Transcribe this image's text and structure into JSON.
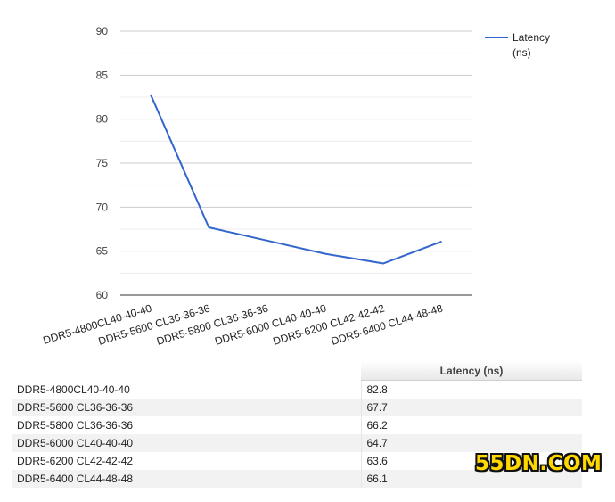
{
  "chart_data": {
    "type": "line",
    "categories": [
      "DDR5-4800CL40-40-40",
      "DDR5-5600 CL36-36-36",
      "DDR5-5800 CL36-36-36",
      "DDR5-6000 CL40-40-40",
      "DDR5-6200 CL42-42-42",
      "DDR5-6400 CL44-48-48"
    ],
    "series": [
      {
        "name": "Latency (ns)",
        "values": [
          82.8,
          67.7,
          66.2,
          64.7,
          63.6,
          66.1
        ],
        "color": "#3366cc"
      }
    ],
    "yticks": [
      60,
      65,
      70,
      75,
      80,
      85,
      90
    ],
    "ylim": [
      60,
      90
    ],
    "grid": true,
    "legend_position": "right",
    "legend_lines": [
      "Latency",
      "(ns)"
    ]
  },
  "table": {
    "header": [
      "",
      "Latency (ns)"
    ],
    "rows": [
      [
        "DDR5-4800CL40-40-40",
        "82.8"
      ],
      [
        "DDR5-5600 CL36-36-36",
        "67.7"
      ],
      [
        "DDR5-5800 CL36-36-36",
        "66.2"
      ],
      [
        "DDR5-6000 CL40-40-40",
        "64.7"
      ],
      [
        "DDR5-6200 CL42-42-42",
        "63.6"
      ],
      [
        "DDR5-6400 CL44-48-48",
        "66.1"
      ]
    ]
  },
  "watermark": {
    "text": "55DN.COM"
  }
}
